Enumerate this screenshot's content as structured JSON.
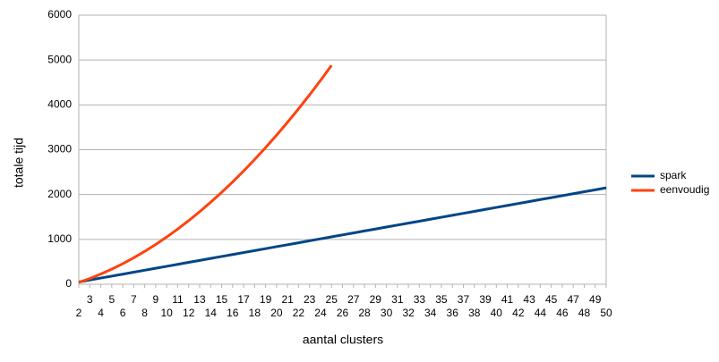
{
  "chart_data": {
    "type": "line",
    "x_label": "aantal clusters",
    "y_label": "totale tijd",
    "x": [
      2,
      3,
      4,
      5,
      6,
      7,
      8,
      9,
      10,
      11,
      12,
      13,
      14,
      15,
      16,
      17,
      18,
      19,
      20,
      21,
      22,
      23,
      24,
      25,
      26,
      27,
      28,
      29,
      30,
      31,
      32,
      33,
      34,
      35,
      36,
      37,
      38,
      39,
      40,
      41,
      42,
      43,
      44,
      45,
      46,
      47,
      48,
      49,
      50
    ],
    "xlim": [
      2,
      50
    ],
    "ylim": [
      0,
      6000
    ],
    "yticks": [
      0,
      1000,
      2000,
      3000,
      4000,
      5000,
      6000
    ],
    "grid": true,
    "legend": "right",
    "series": [
      {
        "name": "spark",
        "color": "#004586",
        "values": [
          50,
          94,
          138,
          181,
          225,
          269,
          313,
          356,
          400,
          444,
          488,
          531,
          575,
          619,
          663,
          706,
          750,
          794,
          838,
          881,
          925,
          969,
          1013,
          1056,
          1100,
          1144,
          1188,
          1231,
          1275,
          1319,
          1363,
          1406,
          1450,
          1494,
          1538,
          1581,
          1625,
          1669,
          1713,
          1756,
          1800,
          1844,
          1888,
          1931,
          1975,
          2019,
          2063,
          2106,
          2150
        ]
      },
      {
        "name": "eenvoudig",
        "color": "#ff420e",
        "values": [
          40,
          127,
          226,
          336,
          457,
          589,
          733,
          887,
          1053,
          1230,
          1418,
          1617,
          1828,
          2049,
          2282,
          2526,
          2781,
          3047,
          3324,
          3613,
          3912,
          4223,
          4545,
          4880,
          null,
          null,
          null,
          null,
          null,
          null,
          null,
          null,
          null,
          null,
          null,
          null,
          null,
          null,
          null,
          null,
          null,
          null,
          null,
          null,
          null,
          null,
          null,
          null,
          null
        ]
      }
    ]
  }
}
